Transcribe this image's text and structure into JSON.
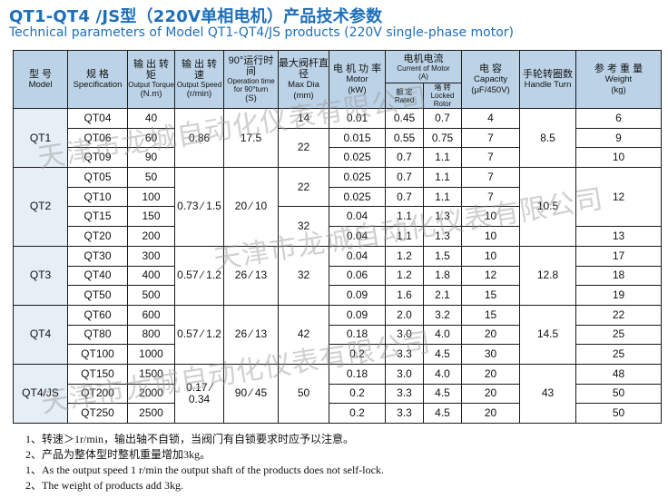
{
  "title_cn": "QT1-QT4 /JS型（220V单相电机）产品技术参数",
  "title_en": "Technical parameters of Model  QT1-QT4/JS  products (220V single-phase motor)",
  "headers": {
    "model": {
      "cn": "型 号",
      "en": "Model"
    },
    "spec": {
      "cn": "规 格",
      "en": "Specification"
    },
    "torque": {
      "cn": "输 出 转 矩",
      "en": "Output Torque",
      "unit": "(N.m)"
    },
    "speed": {
      "cn": "输 出 转 速",
      "en": "Output Speed",
      "unit": "(r/min)"
    },
    "time": {
      "cn": "90°运行时间",
      "en": "Operation time for 90°turn",
      "unit": "(S)"
    },
    "dia": {
      "cn": "最大阀杆直径",
      "en": "Max Dia",
      "unit": "(mm)"
    },
    "power": {
      "cn": "电 机 功 率",
      "en": "Motor",
      "unit": "(kW)"
    },
    "current": {
      "cn": "电机电流",
      "en": "Current of Motor",
      "unit": "(A)",
      "rated_cn": "额 定",
      "rated_en": "Rated",
      "locked_cn": "堵 转",
      "locked_en": "Locked Rotor"
    },
    "capacity": {
      "cn": "电 容",
      "en": "Capacity",
      "unit": "(μF/450V)"
    },
    "handle": {
      "cn": "手轮转圈数",
      "en": "Handle Turn"
    },
    "weight": {
      "cn": "参 考 重 量",
      "en": "Weight",
      "unit": "(kg)"
    }
  },
  "groups": [
    {
      "model": "QT1",
      "speed": "0.86",
      "time": "17.5",
      "handle": "8.5",
      "rows": [
        {
          "spec": "QT04",
          "torque": "40",
          "dia": "14",
          "power": "0.01",
          "rated": "0.45",
          "locked": "0.7",
          "cap": "4",
          "weight": "6"
        },
        {
          "spec": "QT06",
          "torque": "60",
          "dia": "22",
          "power": "0.015",
          "rated": "0.55",
          "locked": "0.75",
          "cap": "7",
          "weight": "9"
        },
        {
          "spec": "QT09",
          "torque": "90",
          "power": "0.025",
          "rated": "0.7",
          "locked": "1.1",
          "cap": "7",
          "weight": "10"
        }
      ]
    },
    {
      "model": "QT2",
      "speed_a": "0.73",
      "speed_b": "1.5",
      "time_a": "20",
      "time_b": "10",
      "handle": "10.5",
      "weight_a": "12",
      "weight_b": "13",
      "dia_a": "22",
      "dia_b": "32",
      "rows": [
        {
          "spec": "QT05",
          "torque": "50",
          "power": "0.025",
          "rated": "0.7",
          "locked": "1.1",
          "cap": "7"
        },
        {
          "spec": "QT10",
          "torque": "100",
          "power": "0.025",
          "rated": "0.7",
          "locked": "1.1",
          "cap": "7"
        },
        {
          "spec": "QT15",
          "torque": "150",
          "power": "0.04",
          "rated": "1.1",
          "locked": "1.3",
          "cap": "10"
        },
        {
          "spec": "QT20",
          "torque": "200",
          "power": "0.04",
          "rated": "1.1",
          "locked": "1.3",
          "cap": "10"
        }
      ]
    },
    {
      "model": "QT3",
      "speed_a": "0.57",
      "speed_b": "1.2",
      "time_a": "26",
      "time_b": "13",
      "dia": "32",
      "handle": "12.8",
      "rows": [
        {
          "spec": "QT30",
          "torque": "300",
          "power": "0.04",
          "rated": "1.2",
          "locked": "1.5",
          "cap": "10",
          "weight": "17"
        },
        {
          "spec": "QT40",
          "torque": "400",
          "power": "0.06",
          "rated": "1.2",
          "locked": "1.8",
          "cap": "12",
          "weight": "18"
        },
        {
          "spec": "QT50",
          "torque": "500",
          "power": "0.09",
          "rated": "1.6",
          "locked": "2.1",
          "cap": "15",
          "weight": "19"
        }
      ]
    },
    {
      "model": "QT4",
      "speed_a": "0.57",
      "speed_b": "1.2",
      "time_a": "26",
      "time_b": "13",
      "dia": "42",
      "handle": "14.5",
      "rows": [
        {
          "spec": "QT60",
          "torque": "600",
          "power": "0.09",
          "rated": "2.0",
          "locked": "3.2",
          "cap": "15",
          "weight": "22"
        },
        {
          "spec": "QT80",
          "torque": "800",
          "power": "0.18",
          "rated": "3.0",
          "locked": "4.0",
          "cap": "20",
          "weight": "25"
        },
        {
          "spec": "QT100",
          "torque": "1000",
          "power": "0.2",
          "rated": "3.3",
          "locked": "4.5",
          "cap": "30",
          "weight": "25"
        }
      ]
    },
    {
      "model": "QT4/JS",
      "speed_a": "0.17",
      "speed_b": "0.34",
      "time_a": "90",
      "time_b": "45",
      "dia": "50",
      "handle": "43",
      "rows": [
        {
          "spec": "QT150",
          "torque": "1500",
          "power": "0.18",
          "rated": "3.0",
          "locked": "4.0",
          "cap": "20",
          "weight": "48"
        },
        {
          "spec": "QT200",
          "torque": "2000",
          "power": "0.2",
          "rated": "3.3",
          "locked": "4.5",
          "cap": "20",
          "weight": "50"
        },
        {
          "spec": "QT250",
          "torque": "2500",
          "power": "0.2",
          "rated": "3.3",
          "locked": "4.5",
          "cap": "20",
          "weight": "50"
        }
      ]
    }
  ],
  "notes": [
    "1、转速＞1r/min，输出轴不自锁，当阀门有自锁要求时应予以注意。",
    "2、产品为整体型时整机重量增加3kg。",
    "1、As the output speed 1 r/min the output shaft of the products does not self-lock.",
    "2、The weight of products add 3kg."
  ],
  "watermark": "天津市龙城自动化仪表有限公司"
}
